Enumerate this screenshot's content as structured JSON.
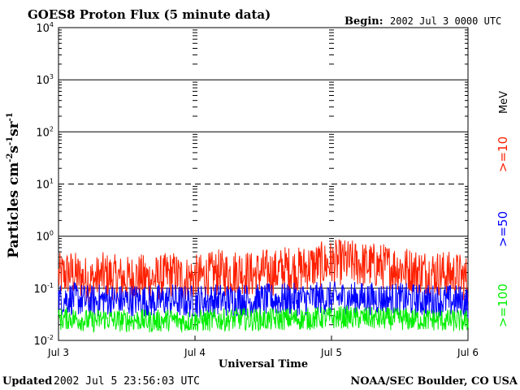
{
  "header": {
    "title": "GOES8 Proton Flux (5 minute data)",
    "begin_label": "Begin:",
    "begin_value": "2002 Jul 3 0000 UTC"
  },
  "footer": {
    "updated_label": "Updated",
    "updated_value": "2002 Jul  5 23:56:03 UTC",
    "credit": "NOAA/SEC Boulder, CO USA"
  },
  "legend": {
    "unit": "MeV",
    "colors": {
      "p10": "#ff2000",
      "p50": "#0000ff",
      "p100": "#00ee00"
    }
  },
  "chart_data": {
    "type": "line",
    "title": "GOES8 Proton Flux (5 minute data)",
    "xlabel": "Universal Time",
    "ylabel_parts": {
      "base": "Particles cm",
      "exp1": "-2",
      "s": "s",
      "exp2": "-1",
      "sr": "sr",
      "exp3": "-1"
    },
    "scale": "log",
    "ylim": [
      0.01,
      10000
    ],
    "y_ticks": [
      {
        "base": "10",
        "exp": "-2"
      },
      {
        "base": "10",
        "exp": "-1"
      },
      {
        "base": "10",
        "exp": "0"
      },
      {
        "base": "10",
        "exp": "1"
      },
      {
        "base": "10",
        "exp": "2"
      },
      {
        "base": "10",
        "exp": "3"
      },
      {
        "base": "10",
        "exp": "4"
      }
    ],
    "x_ticks": [
      "Jul 3",
      "Jul 4",
      "Jul 5",
      "Jul 6"
    ],
    "xlim_hours": [
      0,
      72
    ],
    "threshold_lines": [
      0.1,
      1,
      10,
      100,
      1000
    ],
    "dashed_lines": [
      10
    ],
    "series": [
      {
        "name": ">=10",
        "color": "#ff2000",
        "x_hours": [
          0,
          2,
          4,
          6,
          8,
          10,
          12,
          14,
          16,
          18,
          20,
          22,
          24,
          26,
          28,
          30,
          32,
          34,
          36,
          38,
          40,
          42,
          44,
          46,
          48,
          50,
          52,
          54,
          56,
          58,
          60,
          62,
          64,
          66,
          68,
          70,
          72
        ],
        "values": [
          0.17,
          0.2,
          0.16,
          0.14,
          0.18,
          0.16,
          0.15,
          0.17,
          0.15,
          0.16,
          0.19,
          0.15,
          0.16,
          0.17,
          0.2,
          0.19,
          0.22,
          0.18,
          0.21,
          0.2,
          0.24,
          0.22,
          0.26,
          0.28,
          0.3,
          0.32,
          0.3,
          0.28,
          0.27,
          0.26,
          0.25,
          0.22,
          0.21,
          0.2,
          0.19,
          0.18,
          0.15
        ]
      },
      {
        "name": ">=50",
        "color": "#0000ff",
        "x_hours": [
          0,
          2,
          4,
          6,
          8,
          10,
          12,
          14,
          16,
          18,
          20,
          22,
          24,
          26,
          28,
          30,
          32,
          34,
          36,
          38,
          40,
          42,
          44,
          46,
          48,
          50,
          52,
          54,
          56,
          58,
          60,
          62,
          64,
          66,
          68,
          70,
          72
        ],
        "values": [
          0.06,
          0.065,
          0.06,
          0.055,
          0.062,
          0.058,
          0.057,
          0.06,
          0.056,
          0.058,
          0.06,
          0.055,
          0.057,
          0.058,
          0.06,
          0.059,
          0.061,
          0.058,
          0.06,
          0.06,
          0.062,
          0.061,
          0.063,
          0.064,
          0.065,
          0.066,
          0.065,
          0.064,
          0.063,
          0.062,
          0.062,
          0.06,
          0.059,
          0.058,
          0.058,
          0.057,
          0.055
        ]
      },
      {
        "name": ">=100",
        "color": "#00ee00",
        "x_hours": [
          0,
          2,
          4,
          6,
          8,
          10,
          12,
          14,
          16,
          18,
          20,
          22,
          24,
          26,
          28,
          30,
          32,
          34,
          36,
          38,
          40,
          42,
          44,
          46,
          48,
          50,
          52,
          54,
          56,
          58,
          60,
          62,
          64,
          66,
          68,
          70,
          72
        ],
        "values": [
          0.025,
          0.027,
          0.025,
          0.023,
          0.026,
          0.024,
          0.024,
          0.025,
          0.023,
          0.024,
          0.025,
          0.023,
          0.024,
          0.024,
          0.025,
          0.025,
          0.026,
          0.025,
          0.025,
          0.025,
          0.026,
          0.026,
          0.026,
          0.027,
          0.027,
          0.028,
          0.027,
          0.027,
          0.026,
          0.026,
          0.026,
          0.025,
          0.025,
          0.025,
          0.024,
          0.024,
          0.023
        ]
      }
    ],
    "legend": [
      ">=10",
      ">=50",
      ">=100"
    ]
  }
}
